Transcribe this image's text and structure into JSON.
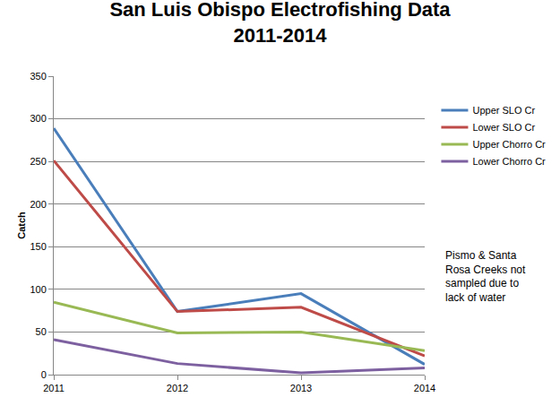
{
  "chart_data": {
    "type": "line",
    "title": "San Luis Obispo Electrofishing Data\n2011-2014",
    "y_label": "Catch",
    "categories": [
      "2011",
      "2012",
      "2013",
      "2014"
    ],
    "series": [
      {
        "name": "Upper SLO Cr",
        "color": "#4a7ebb",
        "values": [
          289,
          74,
          95,
          12
        ]
      },
      {
        "name": "Lower SLO Cr",
        "color": "#be4b48",
        "values": [
          251,
          74,
          79,
          22
        ]
      },
      {
        "name": "Upper Chorro Cr",
        "color": "#98b954",
        "values": [
          85,
          49,
          50,
          28
        ]
      },
      {
        "name": "Lower Chorro Cr",
        "color": "#7d60a0",
        "values": [
          41,
          13,
          2,
          8
        ]
      }
    ],
    "annotations": [
      "Pismo & Santa\nRosa Creeks not\nsampled due to\nlack of water"
    ],
    "ylim": [
      0,
      350
    ],
    "yticks": [
      0,
      50,
      100,
      150,
      200,
      250,
      300,
      350
    ],
    "grid": true,
    "legend": "right",
    "marker": "none",
    "line_style": "solid"
  }
}
